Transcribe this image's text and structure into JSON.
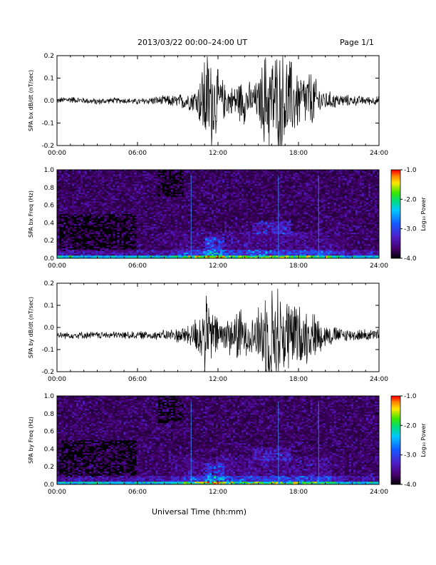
{
  "header": {
    "title": "2013/03/22  00:00–24:00 UT",
    "page": "Page 1/1"
  },
  "footer": {
    "xlabel": "Universal Time (hh:mm)"
  },
  "chart_data": [
    {
      "type": "line",
      "ylabel": "SPA bx dB/dt (nT/sec)",
      "xlim": [
        0,
        24
      ],
      "ylim": [
        -0.2,
        0.2
      ],
      "x_ticks": [
        "00:00",
        "06:00",
        "12:00",
        "18:00",
        "24:00"
      ],
      "y_ticks": [
        "-0.2",
        "-0.1",
        "0.0",
        "0.1",
        "0.2"
      ],
      "envelope": {
        "hours": [
          0,
          1,
          2,
          3,
          4,
          5,
          6,
          7,
          8,
          9,
          10,
          10.5,
          11,
          11.5,
          12,
          12.5,
          13,
          13.5,
          14,
          14.5,
          15,
          15.5,
          16,
          16.5,
          17,
          17.5,
          18,
          18.5,
          19,
          19.5,
          20,
          21,
          22,
          23,
          24
        ],
        "center": [
          0.0,
          0.005,
          0.0,
          -0.005,
          0.0,
          0.0,
          -0.005,
          0.0,
          0.0,
          -0.005,
          0.0,
          0.0,
          0.0,
          0.0,
          0.0,
          0.0,
          0.0,
          0.0,
          0.0,
          0.0,
          0.0,
          0.0,
          0.0,
          0.0,
          0.0,
          0.0,
          0.0,
          0.0,
          0.0,
          0.0,
          0.0,
          0.0,
          0.0,
          0.0,
          0.0
        ],
        "amplitude": [
          0.015,
          0.017,
          0.015,
          0.017,
          0.014,
          0.015,
          0.015,
          0.02,
          0.025,
          0.035,
          0.05,
          0.08,
          0.25,
          0.25,
          0.15,
          0.09,
          0.07,
          0.1,
          0.12,
          0.08,
          0.1,
          0.25,
          0.25,
          0.25,
          0.25,
          0.2,
          0.15,
          0.14,
          0.15,
          0.08,
          0.05,
          0.035,
          0.025,
          0.022,
          0.022
        ]
      }
    },
    {
      "type": "heatmap",
      "ylabel": "SPA bx Freq (Hz)",
      "xlim": [
        0,
        24
      ],
      "ylim": [
        0,
        1
      ],
      "x_ticks": [
        "00:00",
        "06:00",
        "12:00",
        "18:00",
        "24:00"
      ],
      "y_ticks": [
        "0.0",
        "0.2",
        "0.4",
        "0.6",
        "0.8",
        "1.0"
      ],
      "colorbar": {
        "label": "Log₁₀ Power",
        "range": [
          -4,
          -1
        ],
        "ticks": [
          "-1.0",
          "-2.0",
          "-3.0",
          "-4.0"
        ]
      }
    },
    {
      "type": "line",
      "ylabel": "SPA by dB/dt (nT/sec)",
      "xlim": [
        0,
        24
      ],
      "ylim": [
        -0.2,
        0.2
      ],
      "x_ticks": [
        "00:00",
        "06:00",
        "12:00",
        "18:00",
        "24:00"
      ],
      "y_ticks": [
        "-0.2",
        "-0.1",
        "0.0",
        "0.1",
        "0.2"
      ],
      "envelope": {
        "hours": [
          0,
          1,
          2,
          3,
          4,
          5,
          6,
          7,
          8,
          9,
          10,
          10.5,
          11,
          11.5,
          12,
          12.5,
          13,
          13.5,
          14,
          14.5,
          15,
          15.5,
          16,
          16.5,
          17,
          17.5,
          18,
          18.5,
          19,
          19.5,
          20,
          21,
          22,
          23,
          24
        ],
        "center": [
          -0.035,
          -0.035,
          -0.035,
          -0.035,
          -0.035,
          -0.035,
          -0.035,
          -0.035,
          -0.035,
          -0.035,
          -0.035,
          -0.035,
          -0.035,
          -0.035,
          -0.035,
          -0.035,
          -0.035,
          -0.035,
          -0.035,
          -0.035,
          -0.035,
          -0.035,
          -0.035,
          -0.035,
          -0.035,
          -0.035,
          -0.035,
          -0.035,
          -0.035,
          -0.035,
          -0.035,
          -0.035,
          -0.035,
          -0.035,
          -0.035
        ],
        "amplitude": [
          0.018,
          0.018,
          0.018,
          0.018,
          0.018,
          0.02,
          0.02,
          0.022,
          0.025,
          0.04,
          0.06,
          0.12,
          0.2,
          0.15,
          0.09,
          0.1,
          0.1,
          0.15,
          0.1,
          0.1,
          0.14,
          0.25,
          0.25,
          0.25,
          0.2,
          0.2,
          0.15,
          0.15,
          0.12,
          0.1,
          0.06,
          0.04,
          0.03,
          0.03,
          0.03
        ]
      }
    },
    {
      "type": "heatmap",
      "ylabel": "SPA by Freq (Hz)",
      "xlim": [
        0,
        24
      ],
      "ylim": [
        0,
        1
      ],
      "x_ticks": [
        "00:00",
        "06:00",
        "12:00",
        "18:00",
        "24:00"
      ],
      "y_ticks": [
        "0.0",
        "0.2",
        "0.4",
        "0.6",
        "0.8",
        "1.0"
      ],
      "colorbar": {
        "label": "Log₁₀ Power",
        "range": [
          -4,
          -1
        ],
        "ticks": [
          "-1.0",
          "-2.0",
          "-3.0",
          "-4.0"
        ]
      }
    }
  ]
}
